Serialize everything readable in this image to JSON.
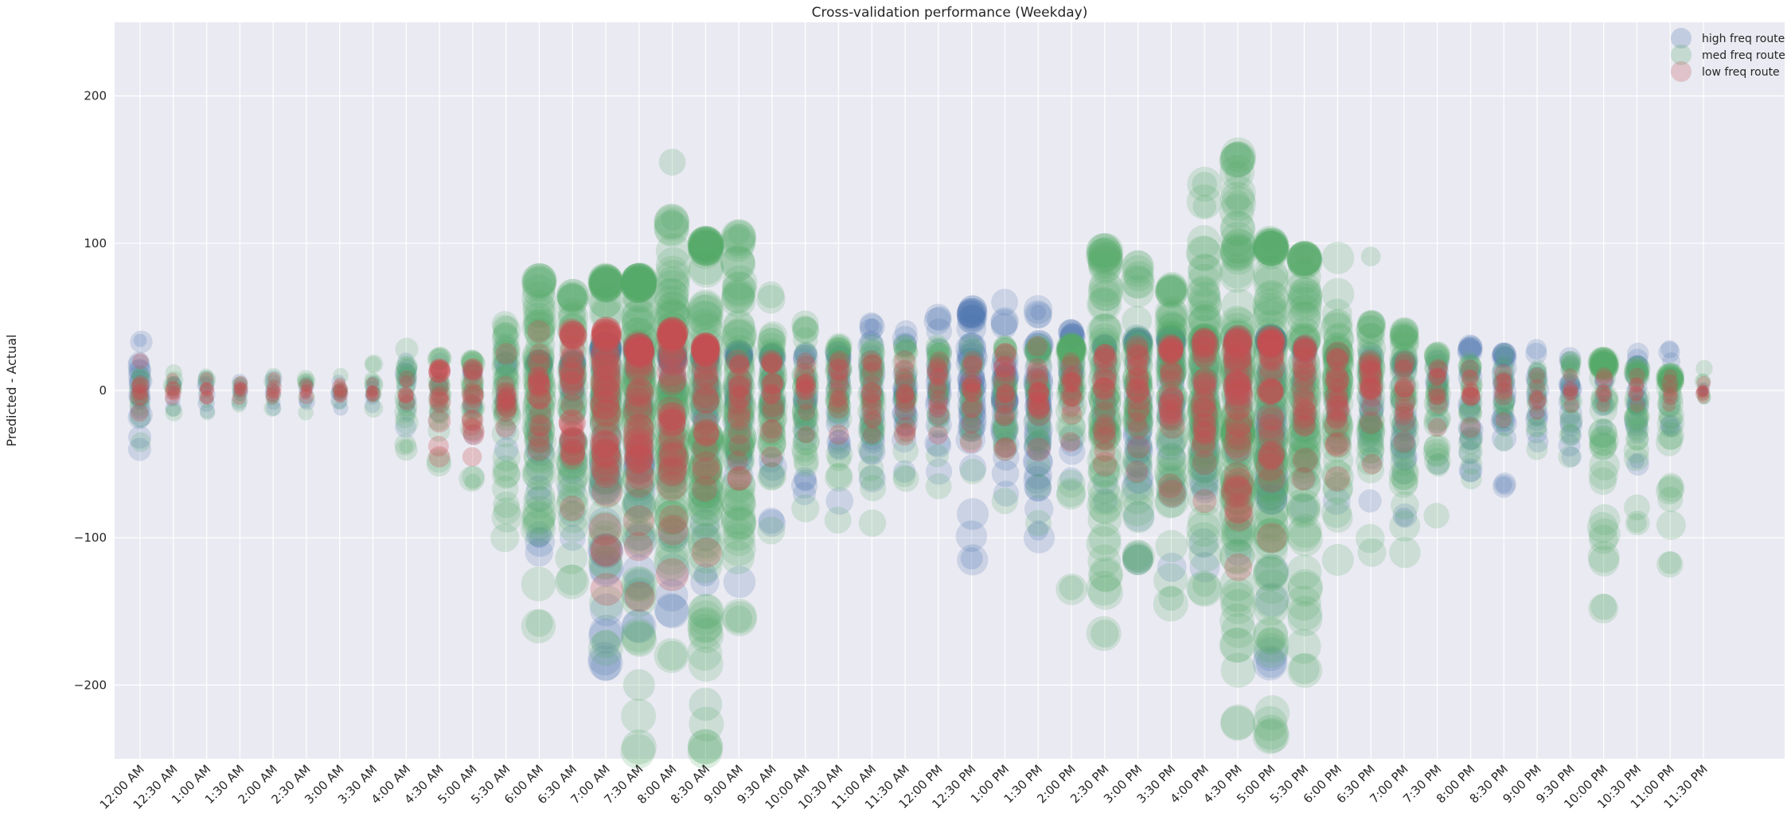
{
  "chart_data": {
    "type": "scatter",
    "title": "Cross-validation performance (Weekday)",
    "xlabel": "",
    "ylabel": "Predicted - Actual",
    "ylim": [
      -250,
      250
    ],
    "yticks": [
      -200,
      -100,
      0,
      100,
      200
    ],
    "grid": true,
    "legend_position": "top-right",
    "categories": [
      "12:00 AM",
      "12:30 AM",
      "1:00 AM",
      "1:30 AM",
      "2:00 AM",
      "2:30 AM",
      "3:00 AM",
      "3:30 AM",
      "4:00 AM",
      "4:30 AM",
      "5:00 AM",
      "5:30 AM",
      "6:00 AM",
      "6:30 AM",
      "7:00 AM",
      "7:30 AM",
      "8:00 AM",
      "8:30 AM",
      "9:00 AM",
      "9:30 AM",
      "10:00 AM",
      "10:30 AM",
      "11:00 AM",
      "11:30 AM",
      "12:00 PM",
      "12:30 PM",
      "1:00 PM",
      "1:30 PM",
      "2:00 PM",
      "2:30 PM",
      "3:00 PM",
      "3:30 PM",
      "4:00 PM",
      "4:30 PM",
      "5:00 PM",
      "5:30 PM",
      "6:00 PM",
      "6:30 PM",
      "7:00 PM",
      "7:30 PM",
      "8:00 PM",
      "8:30 PM",
      "9:00 PM",
      "9:30 PM",
      "10:00 PM",
      "10:30 PM",
      "11:00 PM",
      "11:30 PM"
    ],
    "series": [
      {
        "name": "high freq route",
        "color": "#4c72b0",
        "min": [
          -40,
          -12,
          -14,
          -8,
          -12,
          -8,
          -12,
          -10,
          -25,
          -15,
          -30,
          -40,
          -110,
          -100,
          -185,
          -160,
          -150,
          -130,
          -130,
          -90,
          -70,
          -75,
          -60,
          -55,
          -55,
          -115,
          -70,
          -100,
          -60,
          -75,
          -115,
          -120,
          -120,
          -110,
          -185,
          -80,
          -75,
          -75,
          -85,
          -50,
          -55,
          -65,
          -35,
          -45,
          -25,
          -50,
          -25,
          2
        ],
        "max": [
          33,
          5,
          8,
          6,
          8,
          6,
          6,
          6,
          20,
          20,
          15,
          30,
          20,
          20,
          30,
          30,
          25,
          25,
          25,
          25,
          25,
          25,
          45,
          40,
          50,
          55,
          60,
          55,
          40,
          30,
          35,
          35,
          35,
          35,
          35,
          30,
          25,
          25,
          20,
          20,
          30,
          25,
          28,
          22,
          20,
          25,
          28,
          2
        ],
        "outliers": [
          {
            "x": "12:00 AM",
            "y": 34
          },
          {
            "x": "6:00 AM",
            "y": -100
          },
          {
            "x": "7:00 AM",
            "y": -187
          },
          {
            "x": "8:30 AM",
            "y": -125
          },
          {
            "x": "12:30 PM",
            "y": -114
          },
          {
            "x": "1:30 PM",
            "y": 53
          },
          {
            "x": "1:30 PM",
            "y": -95
          },
          {
            "x": "5:00 PM",
            "y": -185
          },
          {
            "x": "7:00 PM",
            "y": -86
          },
          {
            "x": "8:30 PM",
            "y": -64
          },
          {
            "x": "10:30 PM",
            "y": -48
          },
          {
            "x": "11:00 AM",
            "y": 44
          }
        ]
      },
      {
        "name": "med freq route",
        "color": "#55a868",
        "min": [
          -35,
          -15,
          -15,
          -10,
          -12,
          -15,
          -8,
          -12,
          -40,
          -50,
          -60,
          -100,
          -160,
          -130,
          -175,
          -245,
          -180,
          -245,
          -155,
          -95,
          -80,
          -88,
          -90,
          -60,
          -65,
          -55,
          -75,
          -90,
          -135,
          -165,
          -115,
          -145,
          -135,
          -225,
          -235,
          -190,
          -115,
          -110,
          -110,
          -85,
          -60,
          -35,
          -40,
          -45,
          -148,
          -90,
          -118,
          -5
        ],
        "max": [
          10,
          12,
          10,
          5,
          10,
          8,
          10,
          18,
          28,
          22,
          20,
          45,
          75,
          65,
          75,
          75,
          115,
          100,
          105,
          65,
          45,
          30,
          30,
          30,
          30,
          30,
          30,
          30,
          30,
          95,
          85,
          70,
          140,
          160,
          100,
          90,
          90,
          45,
          40,
          25,
          20,
          25,
          15,
          20,
          20,
          15,
          10,
          15
        ],
        "outliers": [
          {
            "x": "6:00 AM",
            "y": -158
          },
          {
            "x": "7:00 AM",
            "y": -172
          },
          {
            "x": "7:30 AM",
            "y": -200
          },
          {
            "x": "7:30 AM",
            "y": -242
          },
          {
            "x": "8:00 AM",
            "y": -180
          },
          {
            "x": "8:00 AM",
            "y": 116
          },
          {
            "x": "8:00 AM",
            "y": 155
          },
          {
            "x": "8:30 AM",
            "y": -213
          },
          {
            "x": "8:30 AM",
            "y": -242
          },
          {
            "x": "9:00 AM",
            "y": -155
          },
          {
            "x": "9:00 AM",
            "y": 106
          },
          {
            "x": "2:00 PM",
            "y": -134
          },
          {
            "x": "2:30 PM",
            "y": -165
          },
          {
            "x": "3:30 PM",
            "y": -141
          },
          {
            "x": "4:00 PM",
            "y": -132
          },
          {
            "x": "4:00 PM",
            "y": 140
          },
          {
            "x": "4:00 PM",
            "y": 125
          },
          {
            "x": "4:30 PM",
            "y": -226
          },
          {
            "x": "4:30 PM",
            "y": 160
          },
          {
            "x": "4:30 PM",
            "y": 147
          },
          {
            "x": "4:30 PM",
            "y": 128
          },
          {
            "x": "5:00 PM",
            "y": -232
          },
          {
            "x": "5:00 PM",
            "y": -170
          },
          {
            "x": "5:00 PM",
            "y": 102
          },
          {
            "x": "5:30 PM",
            "y": -189
          },
          {
            "x": "5:30 PM",
            "y": 92
          },
          {
            "x": "6:30 PM",
            "y": 91
          },
          {
            "x": "10:00 PM",
            "y": -147
          },
          {
            "x": "10:30 PM",
            "y": -90
          },
          {
            "x": "11:00 PM",
            "y": -117
          },
          {
            "x": "4:00 AM",
            "y": -38
          },
          {
            "x": "5:00 AM",
            "y": -62
          }
        ]
      },
      {
        "name": "low freq route",
        "color": "#c44e52",
        "min": [
          -15,
          -5,
          -5,
          -5,
          -5,
          -4,
          -4,
          -4,
          -8,
          -45,
          -45,
          -25,
          -40,
          -80,
          -135,
          -140,
          -125,
          -110,
          -60,
          -45,
          -30,
          -30,
          -30,
          -30,
          -30,
          -35,
          -40,
          -40,
          -35,
          -50,
          -55,
          -70,
          -75,
          -120,
          -100,
          -60,
          -60,
          -50,
          -35,
          -25,
          -25,
          -20,
          -15,
          -10,
          -10,
          -10,
          -10,
          -5
        ],
        "max": [
          20,
          8,
          8,
          5,
          8,
          4,
          5,
          5,
          8,
          15,
          15,
          25,
          40,
          40,
          40,
          30,
          40,
          30,
          20,
          20,
          20,
          20,
          20,
          20,
          20,
          20,
          25,
          30,
          20,
          25,
          30,
          30,
          35,
          35,
          35,
          30,
          25,
          20,
          20,
          15,
          15,
          12,
          10,
          10,
          10,
          10,
          10,
          5
        ]
      }
    ]
  }
}
